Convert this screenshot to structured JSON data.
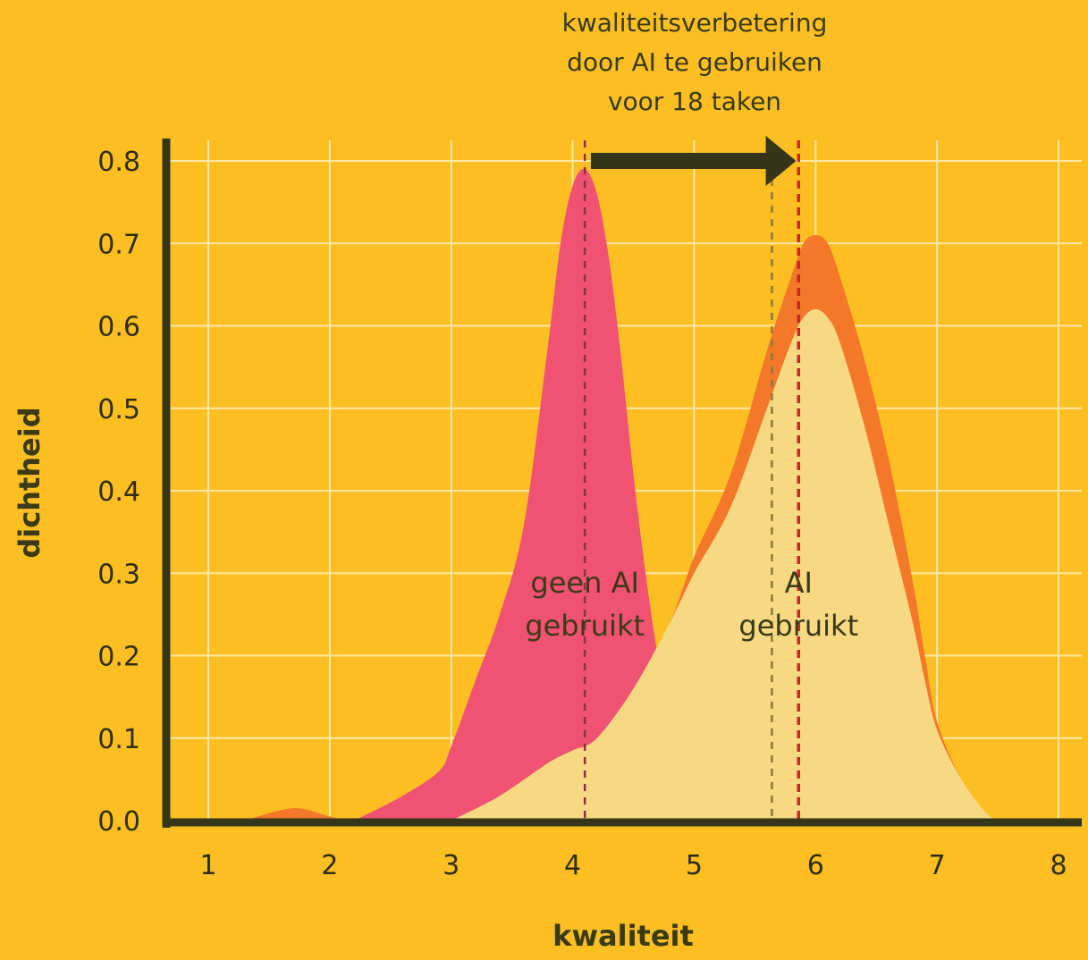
{
  "colors": {
    "background": "#FBBF24",
    "grid": "#FDE8A5",
    "axis": "#35351A",
    "no_ai_fill": "#F05273",
    "ai_fill": "#F7D883",
    "ai_outer_fill": "#F3782A",
    "arrow": "#35351A",
    "mean_no_ai_line": "#8E2F3E",
    "mean_ai_inner_line": "#8A7A3A",
    "mean_ai_line": "#C62828"
  },
  "annotation": {
    "lines": [
      "kwaliteitsverbetering",
      "door AI te gebruiken",
      "voor 18 taken"
    ]
  },
  "chart_data": {
    "type": "area",
    "title": "",
    "xlabel": "kwaliteit",
    "ylabel": "dichtheid",
    "xlim": [
      1,
      8
    ],
    "ylim": [
      0,
      0.8
    ],
    "x_ticks": [
      "1",
      "2",
      "3",
      "4",
      "5",
      "6",
      "7",
      "8"
    ],
    "y_ticks": [
      "0.0",
      "0.1",
      "0.2",
      "0.3",
      "0.4",
      "0.5",
      "0.6",
      "0.7",
      "0.8"
    ],
    "grid": true,
    "series": [
      {
        "name": "geen AI gebruikt",
        "label_lines": [
          "geen AI",
          "gebruikt"
        ],
        "color": "#F05273",
        "x": [
          2.2,
          2.6,
          2.9,
          3.0,
          3.2,
          3.4,
          3.6,
          3.8,
          3.9,
          4.0,
          4.1,
          4.2,
          4.3,
          4.4,
          4.5,
          4.6,
          4.7,
          4.8,
          4.9,
          5.0
        ],
        "y": [
          0.0,
          0.03,
          0.06,
          0.09,
          0.17,
          0.25,
          0.36,
          0.58,
          0.7,
          0.77,
          0.79,
          0.76,
          0.68,
          0.56,
          0.42,
          0.3,
          0.2,
          0.12,
          0.06,
          0.02
        ]
      },
      {
        "name": "AI gebruikt (alle)",
        "color": "#F3782A",
        "x": [
          1.3,
          1.7,
          2.0,
          2.2,
          3.0,
          3.4,
          3.8,
          4.0,
          4.2,
          4.5,
          4.8,
          5.0,
          5.3,
          5.6,
          5.8,
          5.9,
          6.0,
          6.1,
          6.2,
          6.4,
          6.6,
          6.8,
          6.9,
          7.0,
          7.2,
          7.4,
          7.5
        ],
        "y": [
          0.0,
          0.015,
          0.005,
          0.0,
          0.0,
          0.03,
          0.07,
          0.085,
          0.1,
          0.16,
          0.24,
          0.32,
          0.42,
          0.57,
          0.66,
          0.7,
          0.71,
          0.7,
          0.66,
          0.56,
          0.44,
          0.29,
          0.2,
          0.12,
          0.05,
          0.01,
          0.0
        ]
      },
      {
        "name": "AI gebruikt",
        "label_lines": [
          "AI",
          "gebruikt"
        ],
        "color": "#F7D883",
        "x": [
          3.0,
          3.4,
          3.8,
          4.0,
          4.2,
          4.5,
          4.8,
          5.0,
          5.3,
          5.6,
          5.8,
          5.9,
          6.0,
          6.1,
          6.2,
          6.4,
          6.6,
          6.8,
          6.9,
          7.0,
          7.2,
          7.4,
          7.5
        ],
        "y": [
          0.0,
          0.03,
          0.07,
          0.085,
          0.1,
          0.16,
          0.24,
          0.3,
          0.38,
          0.5,
          0.58,
          0.61,
          0.62,
          0.61,
          0.58,
          0.48,
          0.36,
          0.24,
          0.17,
          0.11,
          0.05,
          0.01,
          0.0
        ]
      }
    ],
    "means": [
      {
        "name": "gemiddelde geen AI",
        "x": 4.1
      },
      {
        "name": "gemiddelde AI gebruikt",
        "x": 5.64
      },
      {
        "name": "gemiddelde AI gebruikt (alle)",
        "x": 5.86
      }
    ],
    "arrow": {
      "from_x": 4.15,
      "to_x": 5.84,
      "y": 0.8
    }
  }
}
